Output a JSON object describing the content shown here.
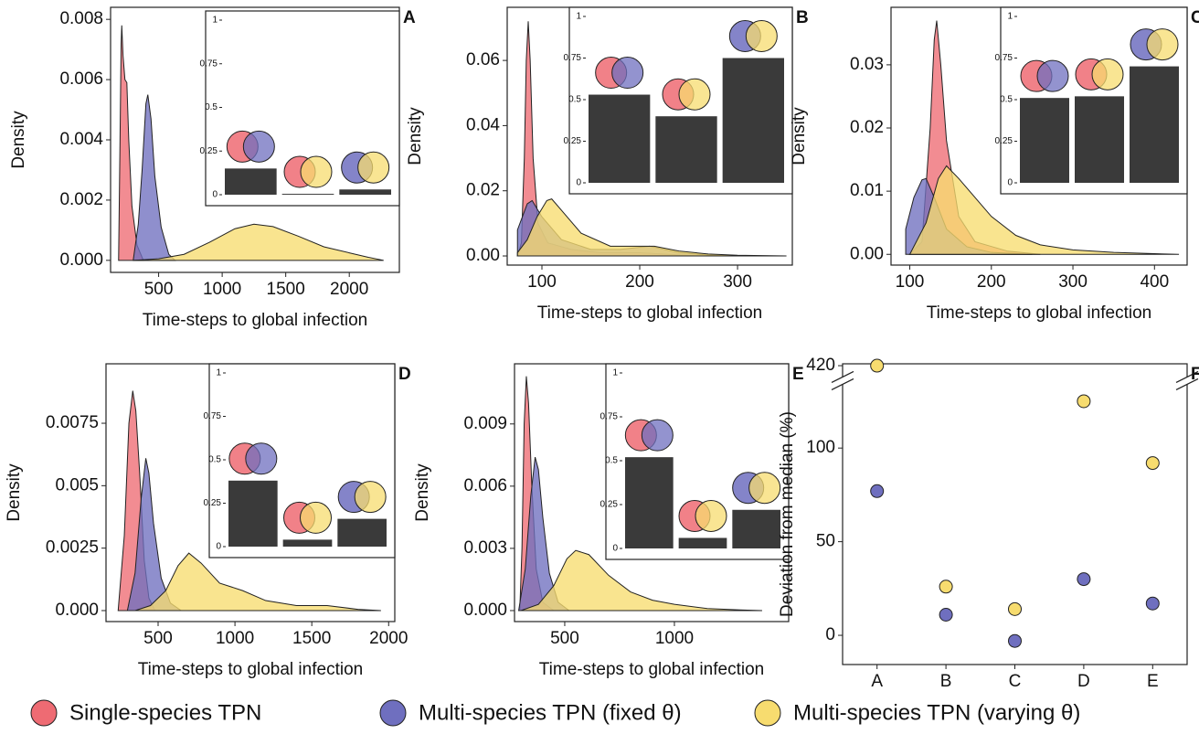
{
  "chart_data": [
    {
      "type": "density",
      "label": "A",
      "xlabel": "Time-steps to global infection",
      "ylabel": "Density",
      "xlim": [
        122,
        2394
      ],
      "xticks": [
        500,
        1000,
        1500,
        2000
      ],
      "ylim": [
        -0.0004,
        0.0084
      ],
      "yticks": [
        {
          "value": 0,
          "label": "0.000"
        },
        {
          "value": 0.002,
          "label": "0.002"
        },
        {
          "value": 0.004,
          "label": "0.004"
        },
        {
          "value": 0.006,
          "label": "0.006"
        },
        {
          "value": 0.008,
          "label": "0.008"
        }
      ],
      "series": [
        {
          "name": "Single-species TPN",
          "color": "#ee6b73",
          "x": [
            185,
            195,
            205,
            210,
            220,
            235,
            250,
            265,
            290,
            330,
            380
          ],
          "values": [
            0,
            0.0035,
            0.0072,
            0.0078,
            0.0068,
            0.006,
            0.0059,
            0.004,
            0.0018,
            0.0005,
            0
          ]
        },
        {
          "name": "Multi-species TPN (fixed θ)",
          "color": "#6f6fbf",
          "x": [
            300,
            340,
            370,
            400,
            415,
            440,
            470,
            520,
            580,
            630
          ],
          "values": [
            0,
            0.0012,
            0.003,
            0.0052,
            0.0055,
            0.0047,
            0.0028,
            0.0011,
            0.0002,
            0
          ]
        },
        {
          "name": "Multi-species TPN (varying θ)",
          "color": "#f7dc6f",
          "x": [
            300,
            500,
            700,
            900,
            1100,
            1250,
            1400,
            1600,
            1800,
            2000,
            2150,
            2270
          ],
          "values": [
            0,
            5e-05,
            0.0002,
            0.0006,
            0.00105,
            0.0012,
            0.00112,
            0.0008,
            0.00045,
            0.00025,
            0.0001,
            0
          ]
        }
      ],
      "inset": {
        "type": "bar",
        "ylim": [
          0,
          1
        ],
        "yticks": [
          0,
          0.25,
          0.5,
          0.75,
          1
        ],
        "values": [
          0.15,
          0.005,
          0.03
        ]
      }
    },
    {
      "type": "density",
      "label": "B",
      "xlabel": "Time-steps to global infection",
      "ylabel": "Density",
      "xlim": [
        64.5,
        356
      ],
      "xticks": [
        100,
        200,
        300
      ],
      "ylim": [
        -0.0028,
        0.0763
      ],
      "yticks": [
        {
          "value": 0,
          "label": "0.00"
        },
        {
          "value": 0.02,
          "label": "0.02"
        },
        {
          "value": 0.04,
          "label": "0.04"
        },
        {
          "value": 0.06,
          "label": "0.06"
        }
      ],
      "series": [
        {
          "name": "Single-species TPN",
          "color": "#ee6b73",
          "x": [
            75,
            79,
            82,
            84,
            86,
            88,
            91,
            96,
            106,
            130,
            160,
            200,
            230,
            260
          ],
          "values": [
            0,
            0.004,
            0.03,
            0.06,
            0.072,
            0.06,
            0.03,
            0.01,
            0.004,
            0.002,
            0.001,
            0.001,
            0.0005,
            0
          ]
        },
        {
          "name": "Multi-species TPN (fixed θ)",
          "color": "#6f6fbf",
          "x": [
            75,
            80,
            85,
            90,
            100,
            120,
            150,
            180,
            210,
            240,
            270,
            300
          ],
          "values": [
            0.008,
            0.012,
            0.016,
            0.017,
            0.012,
            0.005,
            0.002,
            0.002,
            0.003,
            0.001,
            0.0003,
            0
          ]
        },
        {
          "name": "Multi-species TPN (varying θ)",
          "color": "#f7dc6f",
          "x": [
            75,
            85,
            95,
            105,
            110,
            120,
            140,
            170,
            200,
            215,
            240,
            270,
            300,
            350
          ],
          "values": [
            0.001,
            0.005,
            0.012,
            0.017,
            0.0175,
            0.014,
            0.007,
            0.003,
            0.003,
            0.003,
            0.0015,
            0.0006,
            0.0002,
            0
          ]
        }
      ],
      "inset": {
        "type": "bar",
        "ylim": [
          0,
          1
        ],
        "yticks": [
          0,
          0.25,
          0.5,
          0.75,
          1
        ],
        "values": [
          0.53,
          0.4,
          0.75
        ]
      }
    },
    {
      "type": "density",
      "label": "C",
      "xlabel": "Time-steps to global infection",
      "ylabel": "Density",
      "xlim": [
        77,
        440
      ],
      "xticks": [
        100,
        200,
        300,
        400
      ],
      "ylim": [
        -0.0017,
        0.0391
      ],
      "yticks": [
        {
          "value": 0,
          "label": "0.00"
        },
        {
          "value": 0.01,
          "label": "0.01"
        },
        {
          "value": 0.02,
          "label": "0.02"
        },
        {
          "value": 0.03,
          "label": "0.03"
        }
      ],
      "series": [
        {
          "name": "Single-species TPN",
          "color": "#ee6b73",
          "x": [
            100,
            115,
            125,
            130,
            133,
            138,
            145,
            160,
            180,
            220,
            260
          ],
          "values": [
            0,
            0.002,
            0.02,
            0.034,
            0.037,
            0.03,
            0.018,
            0.006,
            0.002,
            0.0005,
            0
          ]
        },
        {
          "name": "Multi-species TPN (fixed θ)",
          "color": "#6f6fbf",
          "x": [
            95,
            105,
            115,
            120,
            130,
            145,
            170,
            200,
            250
          ],
          "values": [
            0.004,
            0.009,
            0.0118,
            0.012,
            0.009,
            0.004,
            0.0012,
            0.0003,
            0
          ]
        },
        {
          "name": "Multi-species TPN (varying θ)",
          "color": "#f7dc6f",
          "x": [
            100,
            120,
            135,
            145,
            160,
            180,
            200,
            230,
            260,
            300,
            350,
            400,
            430
          ],
          "values": [
            0,
            0.005,
            0.012,
            0.014,
            0.012,
            0.009,
            0.006,
            0.003,
            0.0015,
            0.0007,
            0.0003,
            0.0001,
            0
          ]
        }
      ],
      "inset": {
        "type": "bar",
        "ylim": [
          0,
          1
        ],
        "yticks": [
          0,
          0.25,
          0.5,
          0.75,
          1
        ],
        "values": [
          0.51,
          0.52,
          0.7
        ]
      }
    },
    {
      "type": "density",
      "label": "D",
      "xlabel": "Time-steps to global infection",
      "ylabel": "Density",
      "xlim": [
        161,
        2040
      ],
      "xticks": [
        500,
        1000,
        1500,
        2000
      ],
      "ylim": [
        -0.00044,
        0.00988
      ],
      "yticks": [
        {
          "value": 0,
          "label": "0.000"
        },
        {
          "value": 0.0025,
          "label": "0.0025"
        },
        {
          "value": 0.005,
          "label": "0.005"
        },
        {
          "value": 0.0075,
          "label": "0.0075"
        }
      ],
      "series": [
        {
          "name": "Single-species TPN",
          "color": "#ee6b73",
          "x": [
            240,
            280,
            310,
            335,
            355,
            380,
            410,
            440,
            480
          ],
          "values": [
            0,
            0.003,
            0.0075,
            0.0088,
            0.008,
            0.0055,
            0.002,
            0.0005,
            0
          ]
        },
        {
          "name": "Multi-species TPN (fixed θ)",
          "color": "#6f6fbf",
          "x": [
            300,
            350,
            390,
            420,
            440,
            470,
            520,
            580,
            650
          ],
          "values": [
            0,
            0.0015,
            0.0045,
            0.0061,
            0.0055,
            0.0035,
            0.0013,
            0.0003,
            0
          ]
        },
        {
          "name": "Multi-species TPN (varying θ)",
          "color": "#f7dc6f",
          "x": [
            350,
            450,
            550,
            630,
            700,
            780,
            900,
            1050,
            1200,
            1400,
            1600,
            1800,
            1950
          ],
          "values": [
            0,
            0.0002,
            0.0008,
            0.0018,
            0.0023,
            0.0019,
            0.0011,
            0.0008,
            0.0004,
            0.0002,
            0.0002,
            5e-05,
            0
          ]
        }
      ],
      "inset": {
        "type": "bar",
        "ylim": [
          0,
          1
        ],
        "yticks": [
          0,
          0.25,
          0.5,
          0.75,
          1
        ],
        "values": [
          0.38,
          0.04,
          0.16
        ]
      }
    },
    {
      "type": "density",
      "label": "E",
      "xlabel": "Time-steps to global infection",
      "ylabel": "Density",
      "xlim": [
        271,
        1521
      ],
      "xticks": [
        500,
        1000
      ],
      "ylim": [
        -0.00053,
        0.0119
      ],
      "yticks": [
        {
          "value": 0,
          "label": "0.000"
        },
        {
          "value": 0.003,
          "label": "0.003"
        },
        {
          "value": 0.006,
          "label": "0.006"
        },
        {
          "value": 0.009,
          "label": "0.009"
        }
      ],
      "series": [
        {
          "name": "Single-species TPN",
          "color": "#ee6b73",
          "x": [
            295,
            305,
            315,
            325,
            335,
            350,
            370,
            400,
            450
          ],
          "values": [
            0,
            0.003,
            0.009,
            0.0113,
            0.01,
            0.006,
            0.002,
            0.0004,
            0
          ]
        },
        {
          "name": "Multi-species TPN (fixed θ)",
          "color": "#6f6fbf",
          "x": [
            290,
            320,
            345,
            365,
            380,
            400,
            430,
            470,
            520
          ],
          "values": [
            0,
            0.002,
            0.0055,
            0.0074,
            0.0068,
            0.0045,
            0.0018,
            0.0004,
            0
          ]
        },
        {
          "name": "Multi-species TPN (varying θ)",
          "color": "#f7dc6f",
          "x": [
            300,
            380,
            450,
            510,
            550,
            610,
            700,
            800,
            900,
            1000,
            1150,
            1300,
            1400
          ],
          "values": [
            0,
            0.0003,
            0.0012,
            0.0025,
            0.0029,
            0.0027,
            0.0017,
            0.0009,
            0.0005,
            0.0003,
            0.0001,
            3e-05,
            0
          ]
        }
      ],
      "inset": {
        "type": "bar",
        "ylim": [
          0,
          1
        ],
        "yticks": [
          0,
          0.25,
          0.5,
          0.75,
          1
        ],
        "values": [
          0.52,
          0.06,
          0.22
        ]
      }
    },
    {
      "type": "scatter",
      "label": "F",
      "ylabel": "Deviation from median (%)",
      "categories": [
        "A",
        "B",
        "C",
        "D",
        "E"
      ],
      "ylim": [
        -15.6,
        421
      ],
      "yticks": [
        0,
        50,
        100,
        420
      ],
      "axis_break": [
        136,
        412
      ],
      "series": [
        {
          "name": "Multi-species TPN (fixed θ)",
          "color": "#6f6fbf",
          "values": [
            77,
            11,
            -3,
            30,
            17
          ]
        },
        {
          "name": "Multi-species TPN (varying θ)",
          "color": "#f7dc6f",
          "values": [
            420,
            26,
            14,
            125,
            92
          ]
        }
      ]
    }
  ]
}
